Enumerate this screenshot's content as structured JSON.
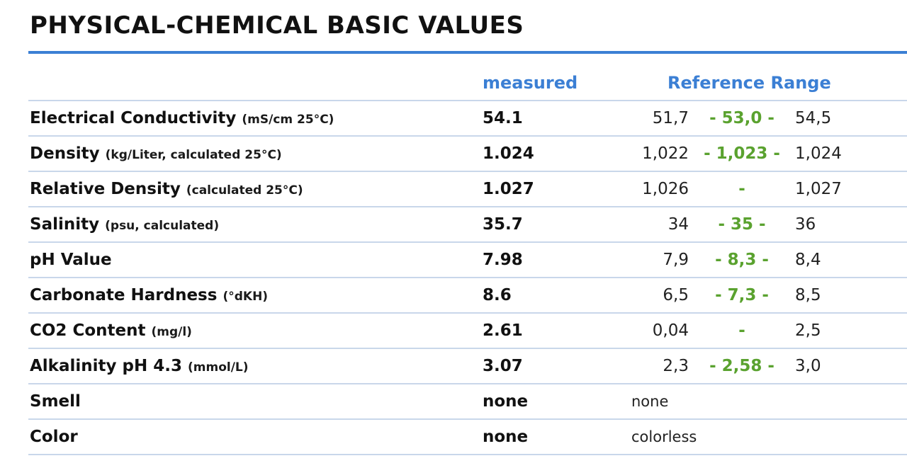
{
  "title": "PHYSICAL-CHEMICAL BASIC VALUES",
  "columns": {
    "measured": "measured",
    "reference": "Reference Range"
  },
  "colors": {
    "accent_blue": "#3b7fd4",
    "optimum_green": "#5aa22f",
    "row_divider": "#c9d7ea"
  },
  "rows": [
    {
      "name": "Electrical Conductivity",
      "unit": "(mS/cm 25°C)",
      "measured": "54.1",
      "min": "51,7",
      "optimum": "- 53,0 -",
      "max": "54,5"
    },
    {
      "name": "Density",
      "unit": "(kg/Liter, calculated 25°C)",
      "measured": "1.024",
      "min": "1,022",
      "optimum": "- 1,023 -",
      "max": "1,024"
    },
    {
      "name": "Relative Density",
      "unit": "(calculated 25°C)",
      "measured": "1.027",
      "min": "1,026",
      "optimum": "-",
      "max": "1,027"
    },
    {
      "name": "Salinity",
      "unit": "(psu, calculated)",
      "measured": "35.7",
      "min": "34",
      "optimum": "- 35 -",
      "max": "36"
    },
    {
      "name": "pH Value",
      "unit": "",
      "measured": "7.98",
      "min": "7,9",
      "optimum": "- 8,3 -",
      "max": "8,4"
    },
    {
      "name": "Carbonate Hardness",
      "unit": "(°dKH)",
      "measured": "8.6",
      "min": "6,5",
      "optimum": "- 7,3 -",
      "max": "8,5"
    },
    {
      "name": "CO2 Content",
      "unit": "(mg/l)",
      "measured": "2.61",
      "min": "0,04",
      "optimum": "-",
      "max": "2,5"
    },
    {
      "name": "Alkalinity pH 4.3",
      "unit": "(mmol/L)",
      "measured": "3.07",
      "min": "2,3",
      "optimum": "- 2,58 -",
      "max": "3,0"
    },
    {
      "name": "Smell",
      "unit": "",
      "measured": "none",
      "reference_text": "none"
    },
    {
      "name": "Color",
      "unit": "",
      "measured": "none",
      "reference_text": "colorless"
    }
  ]
}
